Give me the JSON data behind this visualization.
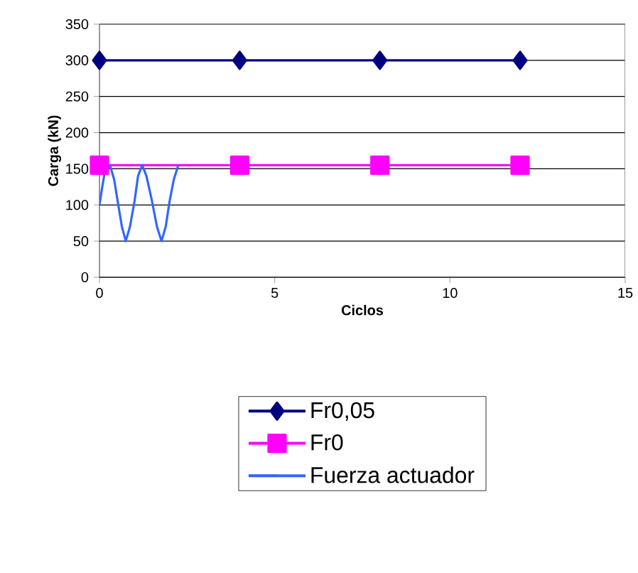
{
  "chart_data": {
    "type": "line",
    "xlabel": "Ciclos",
    "ylabel": "Carga (kN)",
    "xlim": [
      0,
      15
    ],
    "xticks": [
      0,
      5,
      10,
      15
    ],
    "ylim": [
      0,
      350
    ],
    "yticks": [
      0,
      50,
      100,
      150,
      200,
      250,
      300,
      350
    ],
    "grid": "y",
    "legend": "bottom",
    "series": [
      {
        "name": "Fr0,05",
        "color": "#000080",
        "marker": "diamond",
        "x": [
          0,
          4,
          8,
          12
        ],
        "values": [
          300,
          300,
          300,
          300
        ]
      },
      {
        "name": "Fr0",
        "color": "#ff00ff",
        "marker": "square",
        "x": [
          0,
          4,
          8,
          12
        ],
        "values": [
          155,
          155,
          155,
          155
        ]
      },
      {
        "name": "Fuerza actuador",
        "color": "#3366ff",
        "marker": "none",
        "x": [
          0,
          0.08,
          0.15,
          0.3,
          0.42,
          0.52,
          0.64,
          0.75,
          0.87,
          1.0,
          1.1,
          1.22,
          1.34,
          1.5,
          1.64,
          1.77,
          1.89,
          2.0,
          2.12,
          2.25
        ],
        "values": [
          100,
          125,
          145,
          155,
          135,
          105,
          70,
          50,
          70,
          105,
          140,
          155,
          140,
          105,
          70,
          50,
          70,
          105,
          135,
          155
        ]
      }
    ]
  }
}
